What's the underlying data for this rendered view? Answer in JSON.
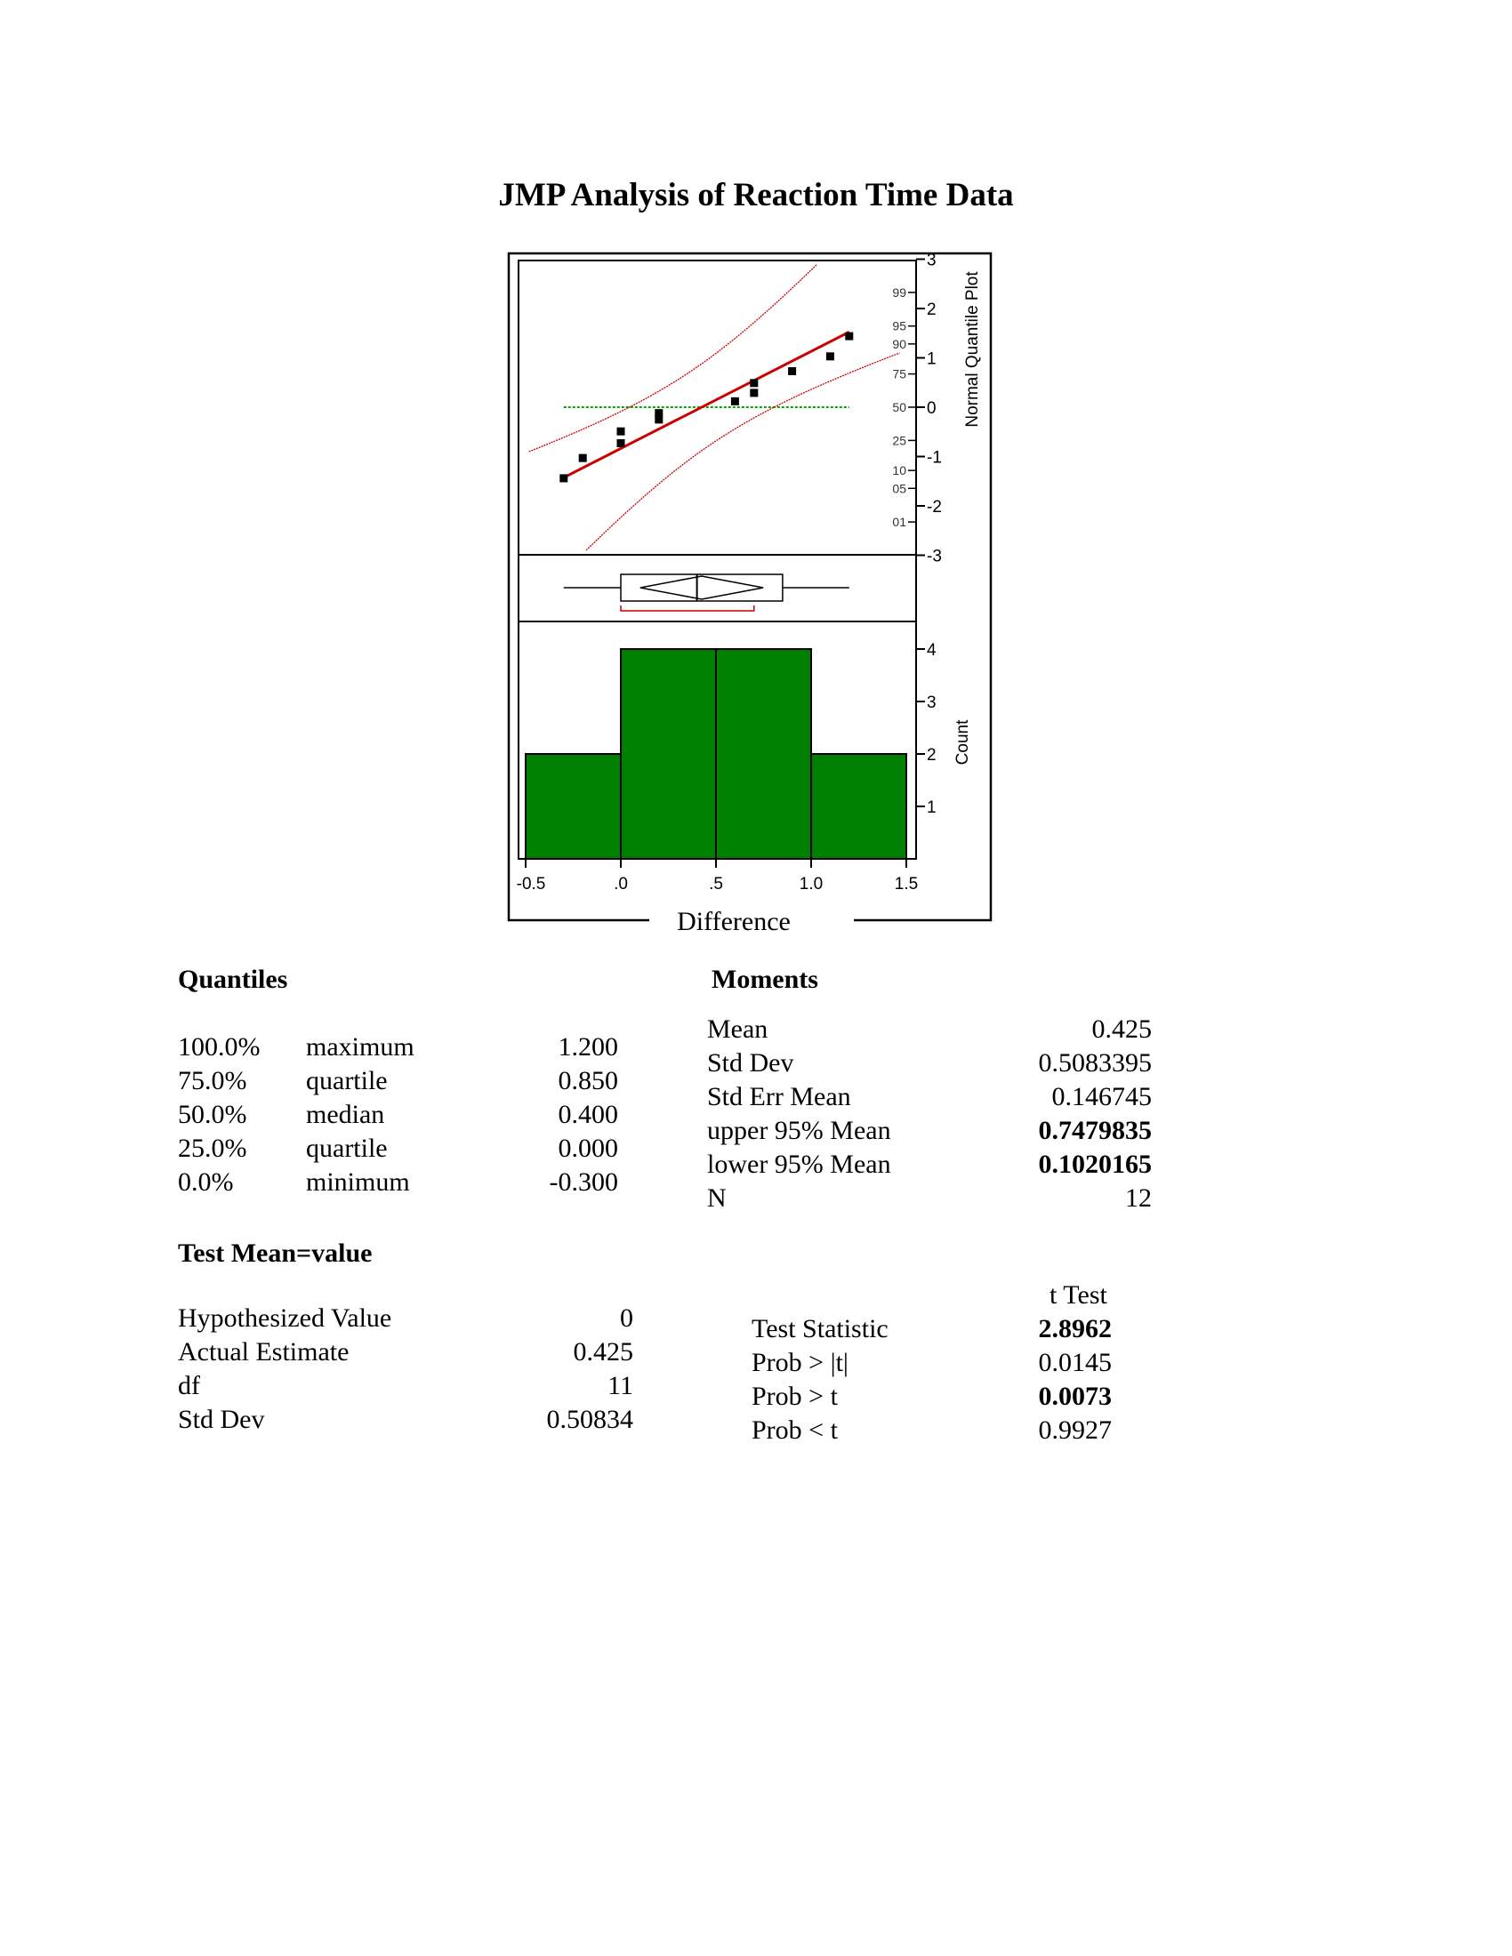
{
  "page_title": "JMP Analysis of Reaction Time Data",
  "chart_data": {
    "type": "histogram",
    "xlabel": "Difference",
    "x_ticks": [
      "-0.5",
      ".0",
      ".5",
      "1.0",
      "1.5"
    ],
    "xlim": [
      -0.5,
      1.5
    ],
    "histogram": {
      "ylabel": "Count",
      "y_ticks": [
        "1",
        "2",
        "3",
        "4"
      ],
      "bins": [
        {
          "from": -0.5,
          "to": 0.0,
          "count": 2
        },
        {
          "from": 0.0,
          "to": 0.5,
          "count": 4
        },
        {
          "from": 0.5,
          "to": 1.0,
          "count": 4
        },
        {
          "from": 1.0,
          "to": 1.5,
          "count": 2
        }
      ],
      "bar_color": "#008000"
    },
    "boxplot": {
      "min": -0.3,
      "q1": 0.0,
      "median": 0.4,
      "q3": 0.85,
      "max": 1.2,
      "mean": 0.425,
      "ci_low": 0.102,
      "ci_high": 0.748
    },
    "quantile_plot": {
      "ylabel": "Normal Quantile Plot",
      "z_ticks": [
        "3",
        "2",
        "1",
        "0",
        "-1",
        "-2",
        "-3"
      ],
      "prob_ticks": [
        "99",
        "95",
        "90",
        "75",
        "50",
        "25",
        "10",
        "05",
        "01"
      ],
      "points": [
        {
          "x": -0.3,
          "z": -1.44
        },
        {
          "x": -0.2,
          "z": -1.03
        },
        {
          "x": 0.0,
          "z": -0.73
        },
        {
          "x": 0.0,
          "z": -0.49
        },
        {
          "x": 0.2,
          "z": -0.25
        },
        {
          "x": 0.2,
          "z": -0.12
        },
        {
          "x": 0.6,
          "z": 0.12
        },
        {
          "x": 0.7,
          "z": 0.29
        },
        {
          "x": 0.7,
          "z": 0.49
        },
        {
          "x": 0.9,
          "z": 0.73
        },
        {
          "x": 1.1,
          "z": 1.03
        },
        {
          "x": 1.2,
          "z": 1.44
        }
      ],
      "fit_line_color": "#cc0000",
      "reference_line_color": "#00aa00"
    }
  },
  "quantiles": {
    "heading": "Quantiles",
    "rows": [
      {
        "pct": "100.0%",
        "name": "maximum",
        "value": "1.200"
      },
      {
        "pct": "75.0%",
        "name": "quartile",
        "value": "0.850"
      },
      {
        "pct": "50.0%",
        "name": "median",
        "value": "0.400"
      },
      {
        "pct": "25.0%",
        "name": "quartile",
        "value": "0.000"
      },
      {
        "pct": "0.0%",
        "name": "minimum",
        "value": "-0.300"
      }
    ]
  },
  "moments": {
    "heading": "Moments",
    "rows": [
      {
        "name": "Mean",
        "value": "0.425",
        "bold": false
      },
      {
        "name": "Std Dev",
        "value": "0.5083395",
        "bold": false
      },
      {
        "name": "Std Err Mean",
        "value": "0.146745",
        "bold": false
      },
      {
        "name": "upper 95% Mean",
        "value": "0.7479835",
        "bold": true
      },
      {
        "name": "lower 95% Mean",
        "value": "0.1020165",
        "bold": true
      },
      {
        "name": "N",
        "value": "12",
        "bold": false
      }
    ]
  },
  "test_mean": {
    "heading": "Test Mean=value",
    "rows": [
      {
        "name": "Hypothesized Value",
        "value": "0"
      },
      {
        "name": "Actual Estimate",
        "value": "0.425"
      },
      {
        "name": "df",
        "value": "11"
      },
      {
        "name": "Std Dev",
        "value": "0.50834"
      }
    ],
    "t_test_heading": "t Test",
    "t_rows": [
      {
        "name": "Test Statistic",
        "value": "2.8962",
        "bold": true
      },
      {
        "name": "Prob > |t|",
        "value": "0.0145",
        "bold": false
      },
      {
        "name": "Prob > t",
        "value": "0.0073",
        "bold": true
      },
      {
        "name": "Prob < t",
        "value": "0.9927",
        "bold": false
      }
    ]
  }
}
